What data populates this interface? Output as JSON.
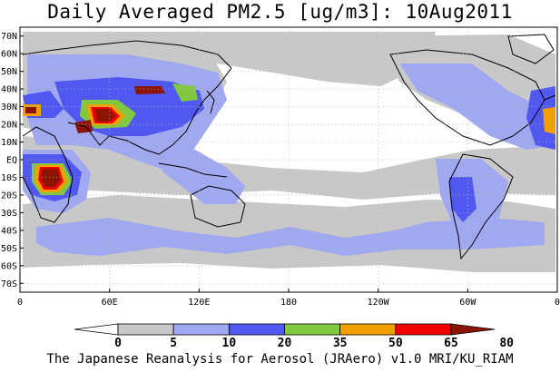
{
  "title": "Daily Averaged PM2.5 [ug/m3]: 10Aug2011",
  "credit": "The Japanese Reanalysis for Aerosol (JRAero) v1.0 MRI/KU_RIAM",
  "map": {
    "projection": "equirectangular, Pacific-centered (0 to 360 longitude)",
    "lat_labels": [
      "70N",
      "60N",
      "50N",
      "40N",
      "30N",
      "20N",
      "10N",
      "EQ",
      "10S",
      "20S",
      "30S",
      "40S",
      "50S",
      "60S",
      "70S"
    ],
    "lon_labels": [
      "0",
      "60E",
      "120E",
      "180",
      "120W",
      "60W",
      "0"
    ],
    "gridlines": "dotted"
  },
  "colorbar": {
    "levels": [
      "0",
      "5",
      "10",
      "20",
      "35",
      "50",
      "65",
      "80"
    ],
    "colors": [
      "#ffffff",
      "#c8c8c8",
      "#a0a8f0",
      "#5058f0",
      "#80c840",
      "#f0a000",
      "#f00000",
      "#8c1400"
    ]
  },
  "layer_colors": {
    "land_outline": "#000000",
    "grid": "#b4b4b4"
  }
}
